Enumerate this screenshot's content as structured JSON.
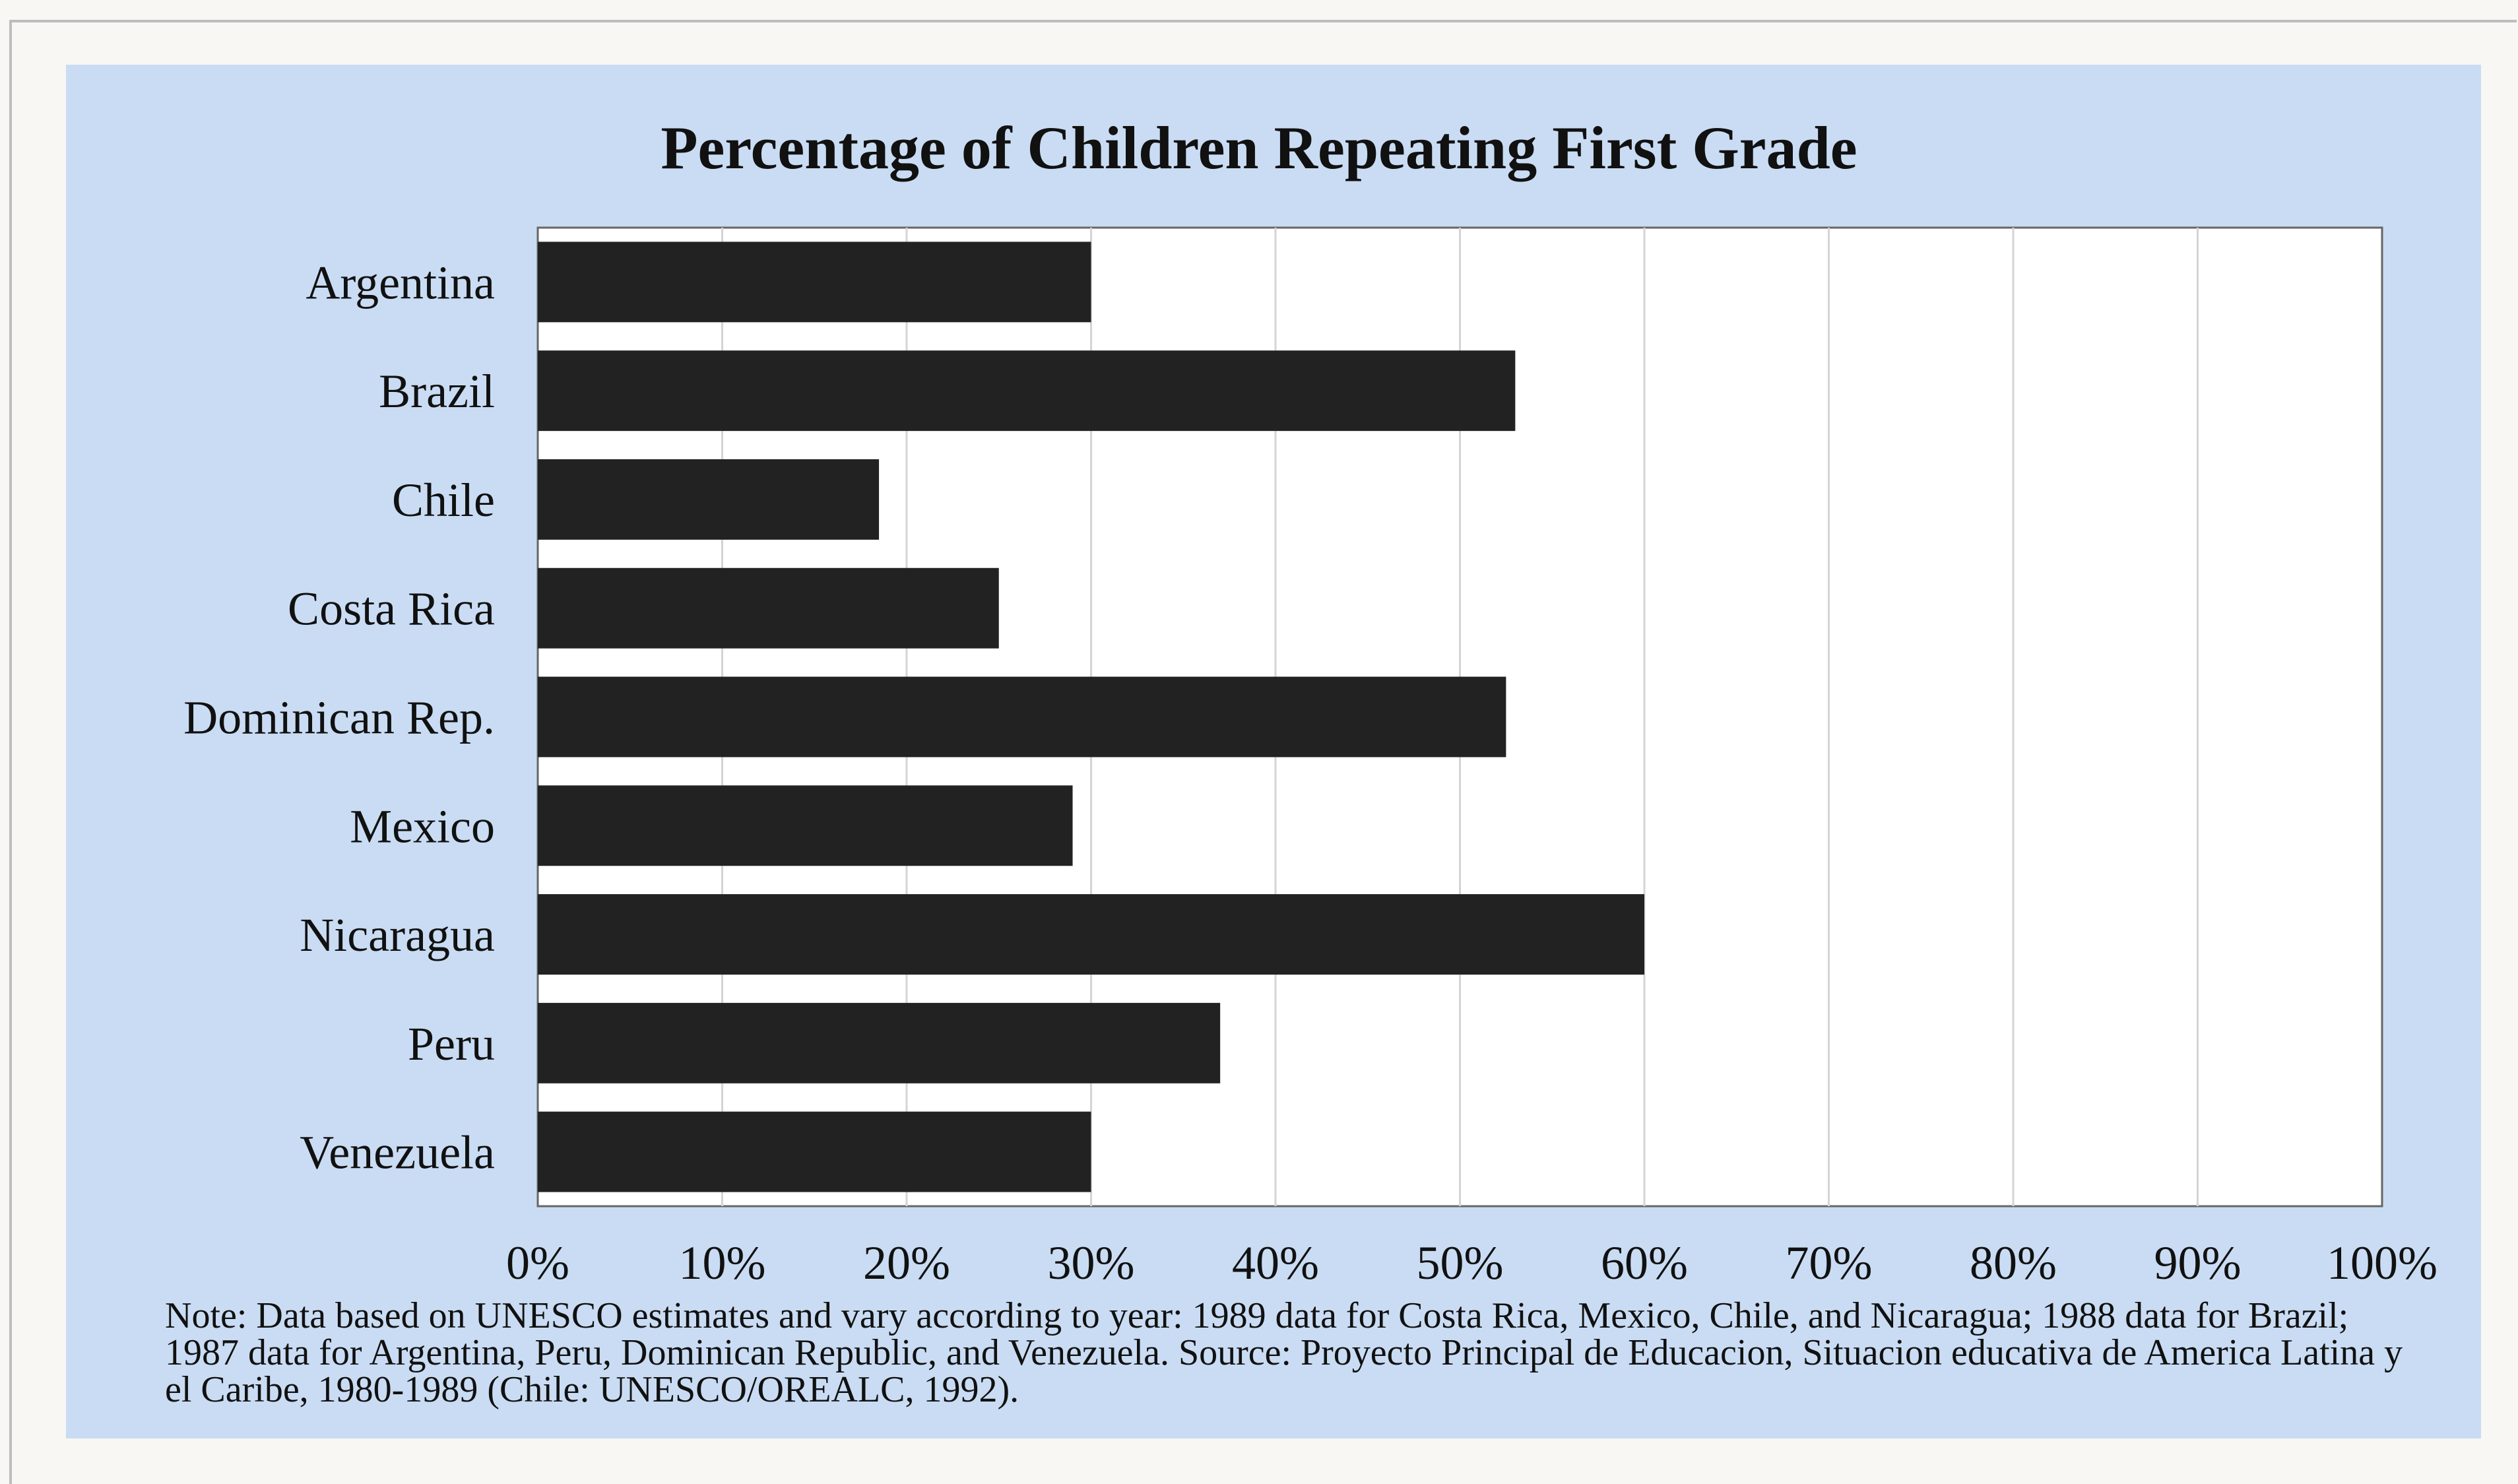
{
  "chart_data": {
    "type": "bar",
    "orientation": "horizontal",
    "title": "Percentage of Children Repeating First Grade",
    "categories": [
      "Argentina",
      "Brazil",
      "Chile",
      "Costa Rica",
      "Dominican Rep.",
      "Mexico",
      "Nicaragua",
      "Peru",
      "Venezuela"
    ],
    "values": [
      30,
      53,
      18.5,
      25,
      52.5,
      29,
      60,
      37,
      30
    ],
    "xlim": [
      0,
      100
    ],
    "x_ticks": [
      "0%",
      "10%",
      "20%",
      "30%",
      "40%",
      "50%",
      "60%",
      "70%",
      "80%",
      "90%",
      "100%"
    ],
    "grid": true,
    "legend": "none",
    "note": "Note:  Data based on UNESCO estimates and vary according to year:  1989 data for Costa Rica, Mexico, Chile, and Nicaragua; 1988 data for Brazil; 1987 data for Argentina, Peru, Dominican Republic, and Venezuela.  Source:  Proyecto Principal de Educacion, Situacion educativa de America Latina y el Caribe, 1980-1989 (Chile:  UNESCO/OREALC, 1992)."
  },
  "colors": {
    "panel_background": "#c9dcf3",
    "plot_background": "#ffffff",
    "bar": "#222222",
    "gridline": "#d4d4d4"
  }
}
